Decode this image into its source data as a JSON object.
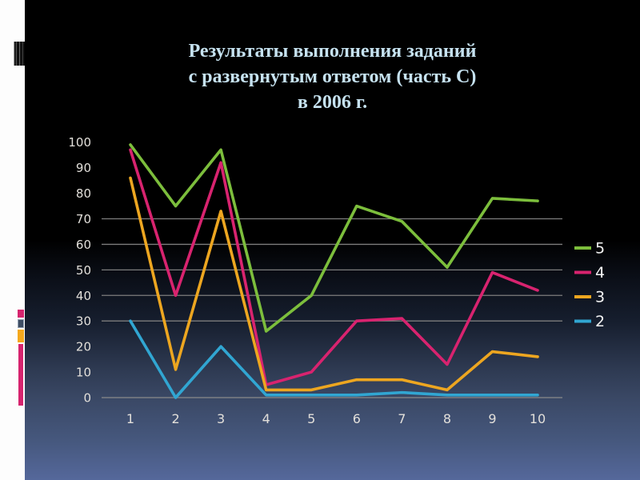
{
  "slide": {
    "title_lines": [
      "Результаты выполнения заданий",
      "с развернутым ответом (часть С)",
      "в 2006 г."
    ],
    "title_color": "#c6e2f0"
  },
  "chart_data": {
    "type": "line",
    "title": "Результаты выполнения заданий с развернутым ответом (часть С) в 2006 г.",
    "xlabel": "",
    "ylabel": "",
    "x": [
      1,
      2,
      3,
      4,
      5,
      6,
      7,
      8,
      9,
      10
    ],
    "series": [
      {
        "name": "5",
        "color": "#7cbe3c",
        "values": [
          99,
          75,
          97,
          26,
          40,
          75,
          69,
          51,
          78,
          77
        ]
      },
      {
        "name": "4",
        "color": "#d8236f",
        "values": [
          97,
          40,
          92,
          5,
          10,
          30,
          31,
          13,
          49,
          42
        ]
      },
      {
        "name": "3",
        "color": "#eda620",
        "values": [
          86,
          11,
          73,
          3,
          3,
          7,
          7,
          3,
          18,
          16
        ]
      },
      {
        "name": "2",
        "color": "#31a6d2",
        "values": [
          30,
          0,
          20,
          1,
          1,
          1,
          2,
          1,
          1,
          1
        ]
      }
    ],
    "ylim": [
      0,
      100
    ],
    "yticks": [
      0,
      10,
      20,
      30,
      40,
      50,
      60,
      70,
      80,
      90,
      100
    ],
    "visible_gridlines": [
      30,
      40,
      50,
      60,
      70
    ],
    "grid": "horizontal-partial",
    "legend_position": "right",
    "legend_order": [
      "5",
      "4",
      "3",
      "2"
    ],
    "axis_color": "#8a8a8a",
    "gridline_color": "#7d7d7d",
    "tick_label_color": "#e2dfda",
    "legend_label_color": "#f4f4f4"
  },
  "decorations": {
    "left_strip_color": "#fdfdfd",
    "small_pink_square_color": "#d6246e",
    "navy_square_color": "#3e4d63",
    "orange_square_color": "#f5a81c",
    "tall_pink_bar_color": "#d6246e"
  }
}
